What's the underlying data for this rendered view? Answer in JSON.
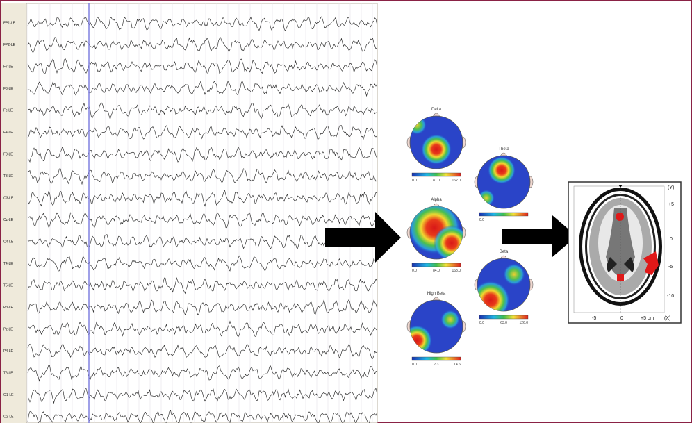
{
  "eeg": {
    "channels": [
      "FP1-LE",
      "FP2-LE",
      "F7-LE",
      "F3-LE",
      "Fz-LE",
      "F4-LE",
      "F8-LE",
      "T3-LE",
      "C3-LE",
      "Cz-LE",
      "C4-LE",
      "T4-LE",
      "T5-LE",
      "P3-LE",
      "Pz-LE",
      "P4-LE",
      "T6-LE",
      "O1-LE",
      "O2-LE"
    ]
  },
  "maps": [
    {
      "title": "Delta",
      "scale": [
        "0.0",
        "81.0",
        "162.0"
      ]
    },
    {
      "title": "Theta",
      "scale": [
        "0.0"
      ]
    },
    {
      "title": "Alpha",
      "scale": [
        "0.0",
        "84.0",
        "168.0"
      ]
    },
    {
      "title": "Beta",
      "scale": [
        "0.0",
        "63.0",
        "126.0"
      ]
    },
    {
      "title": "High Beta",
      "scale": [
        "0.0",
        "7.3",
        "14.6"
      ]
    }
  ],
  "brain": {
    "y_axis_label": "(Y)",
    "y_ticks": [
      "+5",
      "0",
      "-5",
      "-10"
    ],
    "x_ticks": [
      "-5",
      "0",
      "+5 cm"
    ],
    "x_axis_label": "(X)"
  }
}
